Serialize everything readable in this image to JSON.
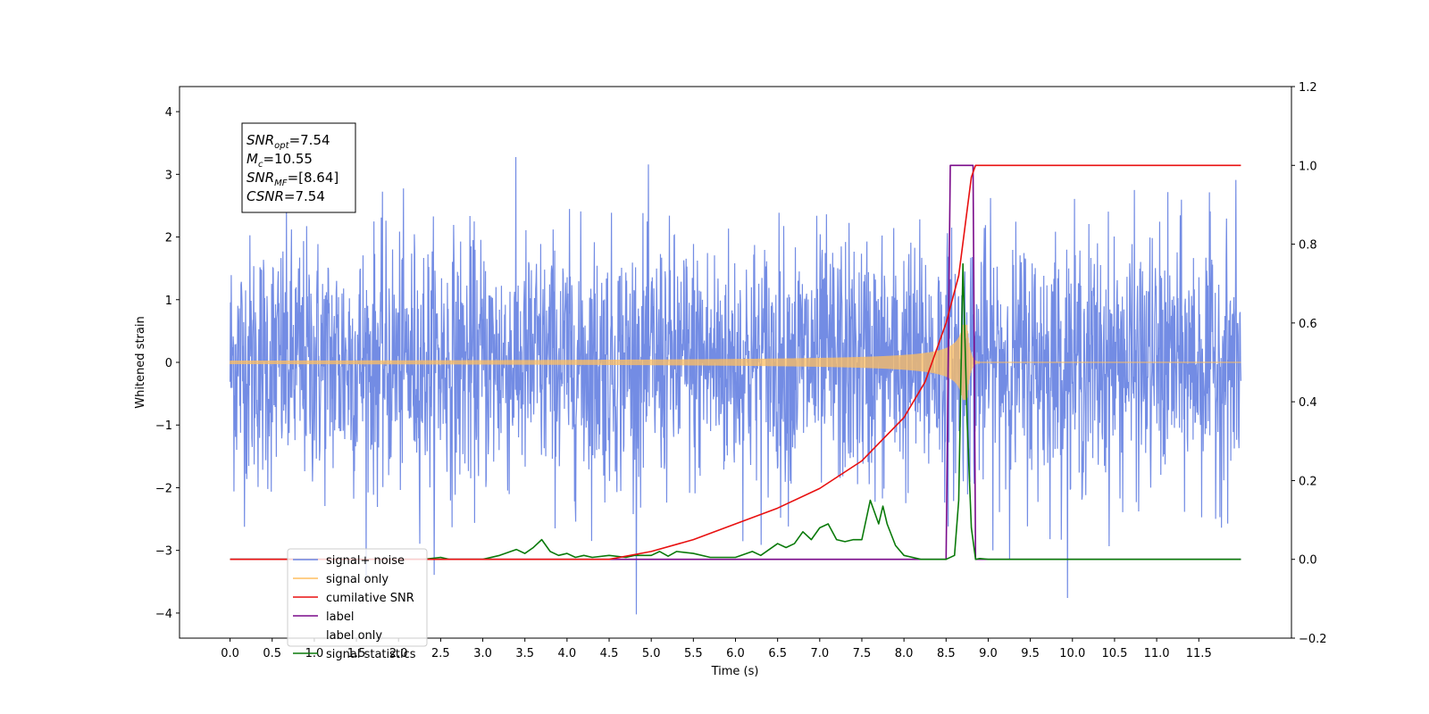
{
  "chart_data": {
    "type": "line",
    "xlabel": "Time (s)",
    "ylabel": "Whitened strain",
    "xlim": [
      -0.6,
      12.6
    ],
    "ylim": [
      -4.4,
      4.4
    ],
    "y2lim": [
      -0.2,
      1.2
    ],
    "xticks": [
      "0.0",
      "0.5",
      "1.0",
      "1.5",
      "2.0",
      "2.5",
      "3.0",
      "3.5",
      "4.0",
      "4.5",
      "5.0",
      "5.5",
      "6.0",
      "6.5",
      "7.0",
      "7.5",
      "8.0",
      "8.5",
      "9.0",
      "9.5",
      "10.0",
      "10.5",
      "11.0",
      "11.5"
    ],
    "yticks": [
      "4",
      "3",
      "2",
      "1",
      "0",
      "−1",
      "−2",
      "−3",
      "−4"
    ],
    "y2ticks": [
      "1.2",
      "1.0",
      "0.8",
      "0.6",
      "0.4",
      "0.2",
      "0.0",
      "−0.2"
    ],
    "legend_position": "lower-left",
    "annotation": [
      {
        "var": "SNR",
        "sub": "opt",
        "value": "=7.54"
      },
      {
        "var": "M",
        "sub": "c",
        "value": "=10.55"
      },
      {
        "var": "SNR",
        "sub": "MF",
        "value": "=[8.64]"
      },
      {
        "var": "CSNR",
        "sub": "",
        "value": "=7.54"
      }
    ],
    "series": [
      {
        "name": "signal+ noise",
        "color": "#6b86e3",
        "axis": "left",
        "kind": "noise",
        "x_range": [
          0.0,
          12.0
        ],
        "amplitude_sigma": 1.0,
        "max_abs": 4.1
      },
      {
        "name": "signal only",
        "color": "#ffbf60",
        "axis": "left",
        "kind": "chirp",
        "x_range": [
          0.0,
          12.0
        ],
        "peak_time": 8.75,
        "peak_amplitude": 0.6
      },
      {
        "name": "cumilative SNR",
        "color": "#e81010",
        "axis": "right",
        "x": [
          0.0,
          4.5,
          5.0,
          5.5,
          6.0,
          6.5,
          7.0,
          7.5,
          8.0,
          8.25,
          8.5,
          8.65,
          8.8,
          8.85,
          12.0
        ],
        "y": [
          0.0,
          0.0,
          0.02,
          0.05,
          0.09,
          0.13,
          0.18,
          0.25,
          0.36,
          0.45,
          0.6,
          0.72,
          0.97,
          1.0,
          1.0
        ]
      },
      {
        "name": "label",
        "color": "#7a0a8a",
        "axis": "right",
        "x": [
          0.0,
          8.5,
          8.55,
          8.82,
          8.85,
          12.0
        ],
        "y": [
          0.0,
          0.0,
          1.0,
          1.0,
          0.0,
          0.0
        ]
      },
      {
        "name": "label only",
        "color": "#ffffff",
        "axis": "right",
        "x": [],
        "y": []
      },
      {
        "name": "signal statistics",
        "color": "#0a7a0a",
        "axis": "right",
        "x": [
          0.0,
          2.3,
          2.5,
          2.6,
          3.0,
          3.2,
          3.4,
          3.5,
          3.6,
          3.7,
          3.8,
          3.9,
          4.0,
          4.1,
          4.2,
          4.3,
          4.5,
          4.7,
          4.8,
          5.0,
          5.1,
          5.2,
          5.3,
          5.5,
          5.7,
          6.0,
          6.2,
          6.3,
          6.4,
          6.5,
          6.6,
          6.7,
          6.8,
          6.9,
          7.0,
          7.1,
          7.2,
          7.3,
          7.4,
          7.5,
          7.6,
          7.7,
          7.75,
          7.8,
          7.9,
          8.0,
          8.2,
          8.5,
          8.6,
          8.65,
          8.7,
          8.75,
          8.8,
          8.85,
          8.9,
          9.0,
          12.0
        ],
        "y": [
          0.0,
          0.0,
          0.005,
          0.0,
          0.0,
          0.01,
          0.025,
          0.015,
          0.03,
          0.05,
          0.02,
          0.01,
          0.015,
          0.005,
          0.01,
          0.005,
          0.01,
          0.005,
          0.01,
          0.01,
          0.02,
          0.008,
          0.02,
          0.015,
          0.005,
          0.005,
          0.02,
          0.01,
          0.025,
          0.04,
          0.03,
          0.04,
          0.07,
          0.05,
          0.08,
          0.09,
          0.05,
          0.045,
          0.05,
          0.05,
          0.15,
          0.09,
          0.135,
          0.09,
          0.035,
          0.01,
          0.0,
          0.0,
          0.01,
          0.15,
          0.75,
          0.35,
          0.08,
          0.0,
          0.002,
          0.0,
          0.0
        ]
      }
    ]
  }
}
